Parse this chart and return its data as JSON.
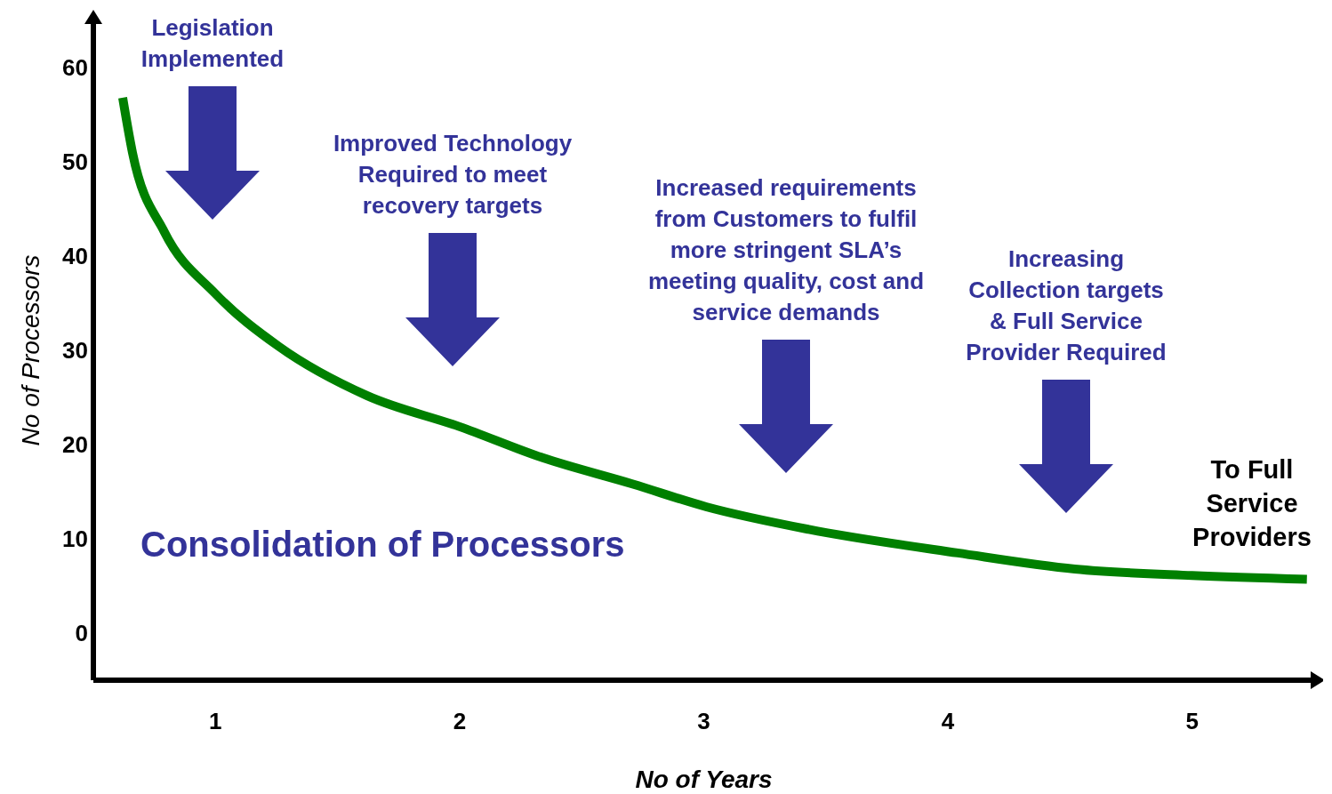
{
  "chart_data": {
    "type": "line",
    "xlabel": "No of Years",
    "ylabel": "No of Processors",
    "x": [
      0.62,
      0.66,
      0.79,
      1.0,
      1.26,
      1.62,
      2.0,
      2.34,
      2.71,
      3.01,
      3.43,
      4.04,
      4.52,
      5.0,
      5.47
    ],
    "series": [
      {
        "color": "#008000",
        "values": [
          56.8,
          51,
          42.6,
          36,
          30.4,
          25.2,
          21.9,
          18.6,
          15.8,
          13.4,
          11,
          8.5,
          6.8,
          6.1,
          5.7
        ]
      }
    ],
    "xlim": [
      0.5,
      5.5
    ],
    "xticks": [
      1,
      2,
      3,
      4,
      5
    ],
    "ylim": [
      -5,
      65
    ],
    "yticks": [
      0,
      10,
      20,
      30,
      40,
      50,
      60
    ],
    "grid": false,
    "marker": "none",
    "line_style": "solid",
    "annotations": [
      "Legislation\nImplemented",
      "Improved Technology\nRequired to meet\nrecovery targets",
      "Increased requirements\nfrom Customers to fulfil\nmore stringent SLA’s\nmeeting quality, cost and\nservice demands",
      "Increasing\nCollection targets\n& Full Service\nProvider Required",
      "Consolidation of Processors",
      "To Full\nService\nProviders"
    ]
  }
}
